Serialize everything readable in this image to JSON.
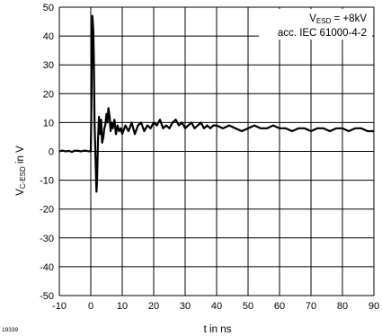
{
  "chart_data": {
    "type": "line",
    "title": "",
    "xlabel": "t in ns",
    "ylabel_main": "V",
    "ylabel_sub": "C-ESD",
    "ylabel_tail": " in  V",
    "xlim": [
      -10,
      90
    ],
    "ylim": [
      -50,
      50
    ],
    "x_ticks": [
      -10,
      0,
      10,
      20,
      30,
      40,
      50,
      60,
      70,
      80,
      90
    ],
    "y_ticks": [
      50,
      40,
      30,
      20,
      10,
      0,
      -10,
      -20,
      -30,
      -40,
      -50
    ],
    "grid": true,
    "figure_number": "19339",
    "annotation": {
      "line1_main": "V",
      "line1_sub": "ESD",
      "line1_tail": " = +8kV",
      "line2": "acc. IEC 61000-4-2"
    },
    "series": [
      {
        "x": [
          -10,
          -9,
          -8,
          -7,
          -6,
          -5,
          -4,
          -3,
          -2,
          -1,
          0,
          0.2,
          0.5,
          0.8,
          1.0,
          1.2,
          1.5,
          1.8,
          2.0,
          2.3,
          2.6,
          3.0,
          3.3,
          3.6,
          4.0,
          4.3,
          4.6,
          5.0,
          5.3,
          5.6,
          6.0,
          6.3,
          6.6,
          7.0,
          7.5,
          8.0,
          8.5,
          9.0,
          9.5,
          10,
          11,
          12,
          13,
          14,
          15,
          16,
          17,
          18,
          19,
          20,
          21,
          22,
          23,
          24,
          25,
          26,
          27,
          28,
          29,
          30,
          31,
          32,
          33,
          34,
          35,
          36,
          37,
          38,
          39,
          40,
          42,
          44,
          46,
          48,
          50,
          52,
          54,
          56,
          58,
          60,
          62,
          64,
          66,
          68,
          70,
          72,
          74,
          76,
          78,
          80,
          82,
          84,
          86,
          88,
          90
        ],
        "y": [
          0,
          0.3,
          0,
          0.2,
          -0.2,
          0.3,
          0.2,
          0,
          0.3,
          0.1,
          0,
          15,
          47,
          42,
          30,
          10,
          -2,
          -14,
          -10,
          4,
          12,
          6,
          11,
          3,
          5,
          8,
          9,
          13,
          10,
          15,
          12,
          7,
          10,
          8,
          11,
          6,
          9,
          7,
          8,
          6,
          9,
          7,
          10,
          6,
          9,
          10,
          7,
          9,
          8,
          10,
          9,
          11,
          8,
          9,
          8,
          10,
          11,
          9,
          10,
          8,
          9,
          10,
          8,
          9,
          10,
          8,
          9,
          8,
          9,
          9,
          8,
          9,
          8,
          7,
          8,
          9,
          8,
          8,
          9,
          8,
          8,
          7,
          8,
          8,
          7,
          8,
          8,
          7,
          8,
          8,
          7,
          8,
          8,
          7,
          7
        ]
      }
    ]
  }
}
